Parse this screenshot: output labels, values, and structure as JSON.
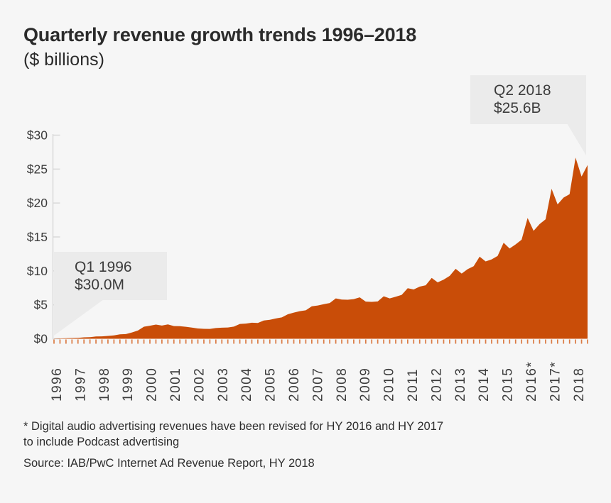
{
  "header": {
    "title": "Quarterly revenue growth trends 1996–2018",
    "subtitle": "($ billions)"
  },
  "callouts": {
    "start": {
      "line1": "Q1 1996",
      "line2": "$30.0M"
    },
    "end": {
      "line1": "Q2 2018",
      "line2": "$25.6B"
    }
  },
  "footnote": {
    "line1": "* Digital audio advertising revenues have been revised for HY 2016 and HY 2017",
    "line2": "to include Podcast advertising",
    "source": "Source: IAB/PwC Internet Ad Revenue Report, HY 2018"
  },
  "colors": {
    "area": "#C94D08",
    "quarter_tick": "#DB7B44",
    "axis": "#D9D9D9",
    "callout_bg": "#EBEBEB",
    "text_dark": "#2B2B2B",
    "text_label": "#3D3D3D",
    "background": "#F6F6F6"
  },
  "chart_data": {
    "type": "area",
    "title": "Quarterly revenue growth trends 1996–2018",
    "units": "$ billions",
    "frequency": "quarterly",
    "x_start": "1996 Q1",
    "x_end": "2018 Q2",
    "ylim": [
      0,
      30
    ],
    "grid": false,
    "legend": false,
    "y_ticks": [
      {
        "label": "$0",
        "value": 0
      },
      {
        "label": "$5",
        "value": 5
      },
      {
        "label": "$10",
        "value": 10
      },
      {
        "label": "$15",
        "value": 15
      },
      {
        "label": "$20",
        "value": 20
      },
      {
        "label": "$25",
        "value": 25
      },
      {
        "label": "$30",
        "value": 30
      }
    ],
    "year_labels": [
      "1996",
      "1997",
      "1998",
      "1999",
      "2000",
      "2001",
      "2002",
      "2003",
      "2004",
      "2005",
      "2006",
      "2007",
      "2008",
      "2009",
      "2010",
      "2011",
      "2012",
      "2013",
      "2014",
      "2015",
      "2016*",
      "2017*",
      "2018"
    ],
    "values": [
      0.03,
      0.05,
      0.08,
      0.11,
      0.13,
      0.21,
      0.23,
      0.34,
      0.35,
      0.42,
      0.49,
      0.66,
      0.69,
      0.93,
      1.22,
      1.78,
      1.92,
      2.09,
      1.95,
      2.12,
      1.87,
      1.85,
      1.77,
      1.64,
      1.52,
      1.46,
      1.45,
      1.58,
      1.63,
      1.66,
      1.79,
      2.18,
      2.23,
      2.37,
      2.33,
      2.69,
      2.8,
      2.99,
      3.15,
      3.61,
      3.85,
      4.06,
      4.19,
      4.78,
      4.9,
      5.09,
      5.27,
      5.95,
      5.77,
      5.75,
      5.84,
      6.1,
      5.47,
      5.43,
      5.5,
      6.26,
      5.94,
      6.19,
      6.47,
      7.45,
      7.26,
      7.68,
      7.88,
      8.97,
      8.31,
      8.72,
      9.27,
      10.31,
      9.6,
      10.26,
      10.69,
      12.1,
      11.4,
      11.7,
      12.2,
      14.15,
      13.3,
      13.9,
      14.6,
      17.8,
      15.9,
      16.9,
      17.6,
      22.1,
      19.8,
      20.8,
      21.3,
      26.7,
      23.9,
      25.6
    ],
    "annotations": [
      {
        "point": "1996 Q1",
        "label": "Q1 1996",
        "value_label": "$30.0M",
        "value": 0.03
      },
      {
        "point": "2018 Q2",
        "label": "Q2 2018",
        "value_label": "$25.6B",
        "value": 25.6
      }
    ]
  }
}
